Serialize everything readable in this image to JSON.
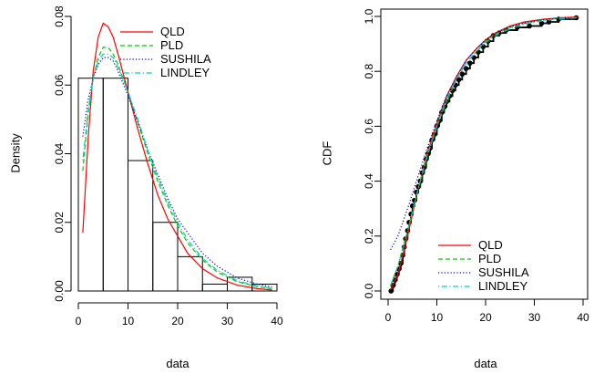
{
  "chart_data": [
    {
      "type": "histogram",
      "xlabel": "data",
      "ylabel": "Density",
      "xlim": [
        0,
        40
      ],
      "ylim": [
        0,
        0.08
      ],
      "x_ticks": [
        0,
        10,
        20,
        30,
        40
      ],
      "y_ticks": [
        0.0,
        0.02,
        0.04,
        0.06,
        0.08
      ],
      "y_tick_labels": [
        "0.00",
        "0.02",
        "0.04",
        "0.06",
        "0.08"
      ],
      "bins": [
        {
          "from": 0,
          "to": 5,
          "density": 0.062
        },
        {
          "from": 5,
          "to": 10,
          "density": 0.062
        },
        {
          "from": 10,
          "to": 15,
          "density": 0.038
        },
        {
          "from": 15,
          "to": 20,
          "density": 0.02
        },
        {
          "from": 20,
          "to": 25,
          "density": 0.01
        },
        {
          "from": 25,
          "to": 30,
          "density": 0.002
        },
        {
          "from": 30,
          "to": 35,
          "density": 0.004
        },
        {
          "from": 35,
          "to": 40,
          "density": 0.002
        }
      ],
      "legend": {
        "position": "top-right",
        "entries": [
          {
            "name": "QLD",
            "color": "#FF0000",
            "style": "solid"
          },
          {
            "name": "PLD",
            "color": "#00CD00",
            "style": "dashed"
          },
          {
            "name": "SUSHILA",
            "color": "#0000CD",
            "style": "dotted"
          },
          {
            "name": "LINDLEY",
            "color": "#00CDCD",
            "style": "dotdash"
          }
        ]
      },
      "series": [
        {
          "name": "QLD",
          "x": [
            0.9,
            2,
            3,
            4,
            5,
            6,
            7,
            8,
            10,
            12,
            14,
            16,
            18,
            20,
            22,
            25,
            28,
            32,
            36,
            39
          ],
          "y": [
            0.017,
            0.045,
            0.064,
            0.074,
            0.078,
            0.077,
            0.074,
            0.069,
            0.058,
            0.047,
            0.037,
            0.028,
            0.021,
            0.016,
            0.011,
            0.0065,
            0.0038,
            0.0017,
            0.0007,
            0.0003
          ]
        },
        {
          "name": "PLD",
          "x": [
            0.9,
            2,
            3,
            4,
            5,
            6,
            7,
            8,
            10,
            12,
            14,
            16,
            18,
            20,
            22,
            25,
            28,
            32,
            36,
            39
          ],
          "y": [
            0.035,
            0.052,
            0.062,
            0.068,
            0.071,
            0.071,
            0.069,
            0.066,
            0.058,
            0.049,
            0.04,
            0.032,
            0.025,
            0.019,
            0.014,
            0.009,
            0.0055,
            0.0027,
            0.0013,
            0.0007
          ]
        },
        {
          "name": "SUSHILA",
          "x": [
            0.9,
            2,
            3,
            4,
            5,
            6,
            7,
            8,
            10,
            12,
            14,
            16,
            18,
            20,
            22,
            25,
            28,
            32,
            36,
            39
          ],
          "y": [
            0.045,
            0.056,
            0.062,
            0.066,
            0.068,
            0.068,
            0.067,
            0.064,
            0.057,
            0.049,
            0.041,
            0.034,
            0.027,
            0.021,
            0.017,
            0.011,
            0.0072,
            0.0038,
            0.002,
            0.0012
          ]
        },
        {
          "name": "LINDLEY",
          "x": [
            0.9,
            2,
            3,
            4,
            5,
            6,
            7,
            8,
            10,
            12,
            14,
            16,
            18,
            20,
            22,
            25,
            28,
            32,
            36,
            39
          ],
          "y": [
            0.038,
            0.053,
            0.062,
            0.067,
            0.069,
            0.069,
            0.068,
            0.065,
            0.058,
            0.05,
            0.041,
            0.033,
            0.026,
            0.02,
            0.015,
            0.0095,
            0.006,
            0.003,
            0.0015,
            0.0008
          ]
        }
      ]
    },
    {
      "type": "line",
      "xlabel": "data",
      "ylabel": "CDF",
      "xlim": [
        0,
        40
      ],
      "ylim": [
        0,
        1
      ],
      "x_ticks": [
        0,
        10,
        20,
        30,
        40
      ],
      "y_ticks": [
        0.0,
        0.2,
        0.4,
        0.6,
        0.8,
        1.0
      ],
      "y_tick_labels": [
        "0.0",
        "0.2",
        "0.4",
        "0.6",
        "0.8",
        "1.0"
      ],
      "legend": {
        "position": "bottom-right",
        "entries": [
          {
            "name": "QLD",
            "color": "#FF0000",
            "style": "solid"
          },
          {
            "name": "PLD",
            "color": "#00CD00",
            "style": "dashed"
          },
          {
            "name": "SUSHILA",
            "color": "#0000CD",
            "style": "dotted"
          },
          {
            "name": "LINDLEY",
            "color": "#00CDCD",
            "style": "dotdash"
          }
        ]
      },
      "empirical_points": {
        "x": [
          0.6,
          1.0,
          1.4,
          1.8,
          2.2,
          2.6,
          3.0,
          3.3,
          3.6,
          4.0,
          4.3,
          4.7,
          5.0,
          5.4,
          5.8,
          6.2,
          6.6,
          7.0,
          7.4,
          7.8,
          8.2,
          8.6,
          9.0,
          9.5,
          10.0,
          10.5,
          11.0,
          11.5,
          12.0,
          12.6,
          13.2,
          13.8,
          14.5,
          15.2,
          16.0,
          16.8,
          17.6,
          18.5,
          19.5,
          20.5,
          21.6,
          22.8,
          24.2,
          26.5,
          29.0,
          31.5,
          33.0,
          35.0,
          38.6
        ],
        "y": [
          0.0,
          0.02,
          0.04,
          0.06,
          0.08,
          0.1,
          0.13,
          0.16,
          0.19,
          0.22,
          0.25,
          0.28,
          0.31,
          0.33,
          0.36,
          0.38,
          0.4,
          0.43,
          0.45,
          0.48,
          0.5,
          0.52,
          0.55,
          0.57,
          0.6,
          0.62,
          0.65,
          0.67,
          0.69,
          0.71,
          0.73,
          0.75,
          0.77,
          0.79,
          0.81,
          0.83,
          0.85,
          0.87,
          0.89,
          0.91,
          0.93,
          0.94,
          0.95,
          0.96,
          0.965,
          0.975,
          0.98,
          0.99,
          0.995
        ]
      },
      "series": [
        {
          "name": "QLD",
          "x": [
            0.5,
            2,
            4,
            6,
            8,
            10,
            12,
            14,
            16,
            18,
            20,
            22,
            25,
            28,
            32,
            36,
            39
          ],
          "y": [
            0.005,
            0.06,
            0.2,
            0.36,
            0.5,
            0.61,
            0.71,
            0.78,
            0.84,
            0.88,
            0.915,
            0.94,
            0.965,
            0.98,
            0.99,
            0.996,
            0.998
          ]
        },
        {
          "name": "PLD",
          "x": [
            0.5,
            2,
            4,
            6,
            8,
            10,
            12,
            14,
            16,
            18,
            20,
            22,
            25,
            28,
            32,
            36,
            39
          ],
          "y": [
            0.02,
            0.09,
            0.22,
            0.36,
            0.49,
            0.6,
            0.69,
            0.77,
            0.83,
            0.87,
            0.91,
            0.935,
            0.96,
            0.975,
            0.988,
            0.994,
            0.996
          ]
        },
        {
          "name": "SUSHILA",
          "x": [
            0.5,
            2,
            4,
            6,
            8,
            10,
            12,
            14,
            16,
            18,
            20,
            22,
            25,
            28,
            32,
            36,
            39
          ],
          "y": [
            0.15,
            0.2,
            0.3,
            0.41,
            0.52,
            0.62,
            0.71,
            0.78,
            0.84,
            0.88,
            0.915,
            0.94,
            0.962,
            0.976,
            0.988,
            0.994,
            0.996
          ]
        },
        {
          "name": "LINDLEY",
          "x": [
            0.5,
            2,
            4,
            6,
            8,
            10,
            12,
            14,
            16,
            18,
            20,
            22,
            25,
            28,
            32,
            36,
            39
          ],
          "y": [
            0.02,
            0.09,
            0.22,
            0.36,
            0.49,
            0.6,
            0.7,
            0.77,
            0.83,
            0.87,
            0.905,
            0.93,
            0.955,
            0.972,
            0.985,
            0.992,
            0.995
          ]
        }
      ]
    }
  ]
}
